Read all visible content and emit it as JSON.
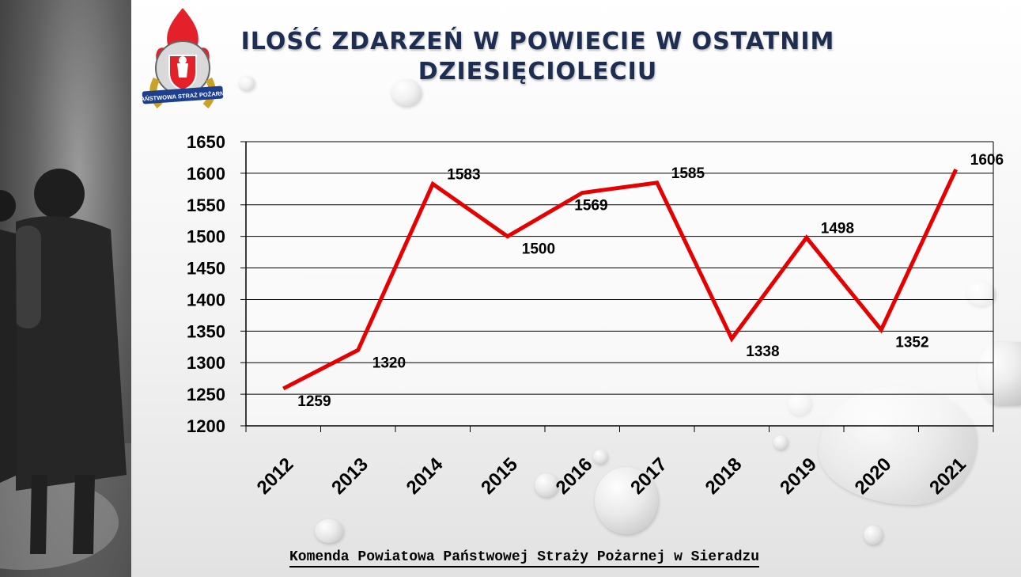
{
  "title": "ILOŚĆ ZDARZEŃ W POWIECIE W OSTATNIM DZIESIĘCIOLECIU",
  "logo_text": "PAŃSTWOWA STRAŻ POŻARNA",
  "footer": "Komenda Powiatowa Państwowej Straży Pożarnej w Sieradzu",
  "colors": {
    "line": "#e60000",
    "title": "#1d2e52",
    "grid": "#000000"
  },
  "chart_data": {
    "type": "line",
    "categories": [
      "2012",
      "2013",
      "2014",
      "2015",
      "2016",
      "2017",
      "2018",
      "2019",
      "2020",
      "2021"
    ],
    "series": [
      {
        "values": [
          1259,
          1320,
          1583,
          1500,
          1569,
          1585,
          1338,
          1498,
          1352,
          1606
        ]
      }
    ],
    "ylim": [
      1200,
      1650
    ],
    "yticks": [
      1200,
      1250,
      1300,
      1350,
      1400,
      1450,
      1500,
      1550,
      1600,
      1650
    ],
    "grid": true,
    "data_labels": true,
    "legend": "none"
  }
}
